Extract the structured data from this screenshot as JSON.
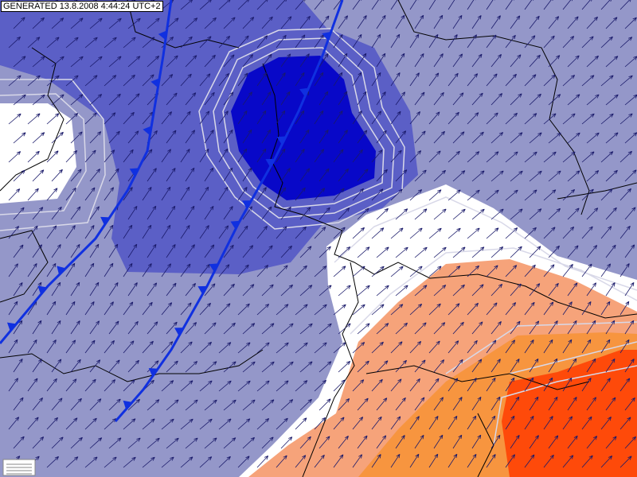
{
  "header": {
    "timestamp": "GENERATED 13.8.2008 4:44:24 UTC+2"
  }
}
